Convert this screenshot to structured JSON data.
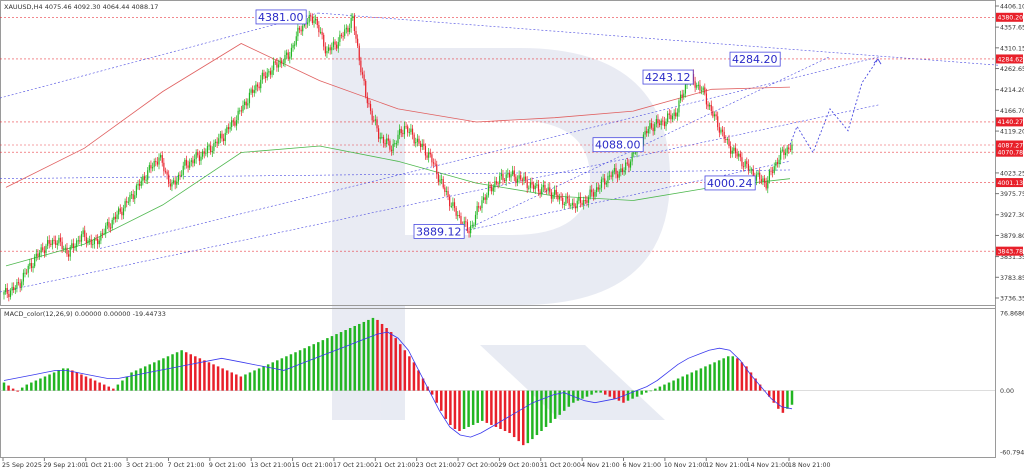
{
  "header": {
    "symbol_label": "XAUUSD,H4  4075.46 4092.30 4064.44 4088.17"
  },
  "price_axis": {
    "ticks": [
      "4406.10",
      "4357.65",
      "4310.15",
      "4262.65",
      "4214.20",
      "4166.70",
      "4119.20",
      "4023.25",
      "3975.75",
      "3927.30",
      "3879.80",
      "3831.35",
      "3783.85",
      "3736.35"
    ],
    "tag_labels": [
      "4380.20",
      "4284.62",
      "4140.27",
      "4087.27",
      "4070.78",
      "4001.13",
      "3843.78"
    ],
    "tag_color": "#e8202a"
  },
  "time_axis": {
    "labels": [
      "25 Sep 2025",
      "29 Sep 21:00",
      "1 Oct 21:00",
      "3 Oct 21:00",
      "7 Oct 21:00",
      "9 Oct 21:00",
      "13 Oct 21:00",
      "15 Oct 21:00",
      "17 Oct 21:00",
      "21 Oct 21:00",
      "23 Oct 21:00",
      "27 Oct 20:00",
      "29 Oct 20:00",
      "31 Oct 20:00",
      "4 Nov 21:00",
      "6 Nov 21:00",
      "10 Nov 21:00",
      "12 Nov 21:00",
      "14 Nov 21:00",
      "18 Nov 21:00"
    ]
  },
  "callouts": [
    "4381.00",
    "4284.20",
    "4243.12",
    "4088.00",
    "4000.24",
    "3889.12"
  ],
  "macd": {
    "label": "MACD_color(12,26,9) 0.00000 0.00000 -19.44733",
    "ticks": [
      "76.86864",
      "0.00",
      "-60.79459"
    ]
  },
  "colors": {
    "bull": "#22b522",
    "bear": "#e8202a",
    "signal": "#3a3aee",
    "trend": "#4a4ae0",
    "watermark": "#dfe3ee",
    "grid": "#c4c4c4"
  },
  "chart_data": [
    {
      "type": "candlestick",
      "symbol": "XAUUSD",
      "timeframe": "H4",
      "ohlc_last": {
        "open": 4075.46,
        "high": 4092.3,
        "low": 4064.44,
        "close": 4088.17
      },
      "ylim": [
        3715,
        4425
      ],
      "grid": false,
      "key_prices": {
        "high": 4381.0,
        "pivot_low": 3889.12,
        "support_low": 4000.24,
        "mid": 4088.0,
        "swing_high": 4243.12,
        "target": 4284.2
      },
      "x_labels": [
        "25 Sep 2025",
        "29 Sep 21:00",
        "1 Oct 21:00",
        "3 Oct 21:00",
        "7 Oct 21:00",
        "9 Oct 21:00",
        "13 Oct 21:00",
        "15 Oct 21:00",
        "17 Oct 21:00",
        "21 Oct 21:00",
        "23 Oct 21:00",
        "27 Oct 20:00",
        "29 Oct 20:00",
        "31 Oct 20:00",
        "4 Nov 21:00",
        "6 Nov 21:00",
        "10 Nov 21:00",
        "12 Nov 21:00",
        "14 Nov 21:00",
        "18 Nov 21:00"
      ],
      "close_path": [
        3745,
        3762,
        3810,
        3850,
        3870,
        3840,
        3880,
        3860,
        3900,
        3935,
        3975,
        4020,
        4060,
        3990,
        4040,
        4060,
        4080,
        4110,
        4150,
        4200,
        4240,
        4270,
        4290,
        4360,
        4381,
        4300,
        4330,
        4375,
        4200,
        4110,
        4080,
        4130,
        4095,
        4060,
        3990,
        3930,
        3889.12,
        3960,
        4000,
        4020,
        4010,
        3990,
        3985,
        3965,
        3950,
        3960,
        3990,
        4020,
        4030,
        4080,
        4130,
        4140,
        4160,
        4243.12,
        4215,
        4150,
        4090,
        4055,
        4020,
        4000.24,
        4060,
        4088.17
      ],
      "forecast_path": [
        4088.17,
        4130,
        4070,
        4170,
        4120,
        4230,
        4284.2
      ],
      "series": [
        {
          "name": "",
          "values": [
            3990,
            4080,
            4210,
            4320,
            4235,
            4170,
            4140,
            4150,
            4165,
            4215,
            4220
          ]
        },
        {
          "name": "",
          "values": [
            3810,
            3860,
            3950,
            4070,
            4085,
            4050,
            4000,
            3970,
            3960,
            3990,
            4010
          ]
        }
      ]
    },
    {
      "type": "bar",
      "label": "MACD_color(12,26,9) 0.00000 0.00000 -19.44733",
      "ylim": [
        -60.79459,
        76.86864
      ],
      "values": [
        8,
        5,
        2,
        -1,
        3,
        6,
        8,
        10,
        12,
        14,
        16,
        18,
        20,
        22,
        22,
        20,
        18,
        16,
        14,
        12,
        10,
        8,
        6,
        4,
        2,
        6,
        10,
        14,
        18,
        20,
        22,
        24,
        26,
        28,
        30,
        32,
        34,
        36,
        38,
        40,
        38,
        36,
        34,
        32,
        30,
        28,
        26,
        24,
        22,
        20,
        18,
        16,
        14,
        16,
        18,
        20,
        22,
        24,
        26,
        28,
        30,
        32,
        34,
        36,
        38,
        40,
        42,
        44,
        46,
        48,
        50,
        52,
        54,
        56,
        58,
        60,
        62,
        64,
        66,
        68,
        70,
        72,
        70,
        66,
        62,
        58,
        52,
        46,
        40,
        34,
        28,
        20,
        12,
        4,
        -4,
        -12,
        -20,
        -28,
        -34,
        -38,
        -40,
        -38,
        -36,
        -34,
        -32,
        -30,
        -32,
        -34,
        -36,
        -38,
        -40,
        -42,
        -46,
        -50,
        -54,
        -52,
        -48,
        -44,
        -40,
        -36,
        -32,
        -28,
        -24,
        -20,
        -16,
        -12,
        -10,
        -8,
        -6,
        -4,
        -2,
        -2,
        -4,
        -6,
        -8,
        -10,
        -12,
        -10,
        -8,
        -6,
        -4,
        -2,
        0,
        2,
        4,
        6,
        8,
        10,
        12,
        14,
        16,
        18,
        20,
        22,
        24,
        26,
        28,
        30,
        32,
        34,
        34,
        32,
        28,
        24,
        18,
        12,
        6,
        0,
        -6,
        -12,
        -18,
        -22,
        -18,
        -14
      ],
      "signal_values": [
        10,
        12,
        14,
        16,
        18,
        20,
        20,
        18,
        16,
        14,
        12,
        12,
        14,
        16,
        18,
        20,
        22,
        24,
        26,
        28,
        30,
        32,
        30,
        28,
        26,
        24,
        22,
        20,
        24,
        28,
        32,
        36,
        40,
        44,
        48,
        52,
        56,
        58,
        52,
        40,
        20,
        0,
        -20,
        -36,
        -44,
        -46,
        -42,
        -36,
        -30,
        -24,
        -18,
        -12,
        -8,
        -4,
        -2,
        -6,
        -10,
        -12,
        -10,
        -8,
        -4,
        0,
        4,
        10,
        18,
        26,
        32,
        36,
        40,
        42,
        40,
        30,
        16,
        4,
        -8,
        -16,
        -18
      ]
    }
  ]
}
